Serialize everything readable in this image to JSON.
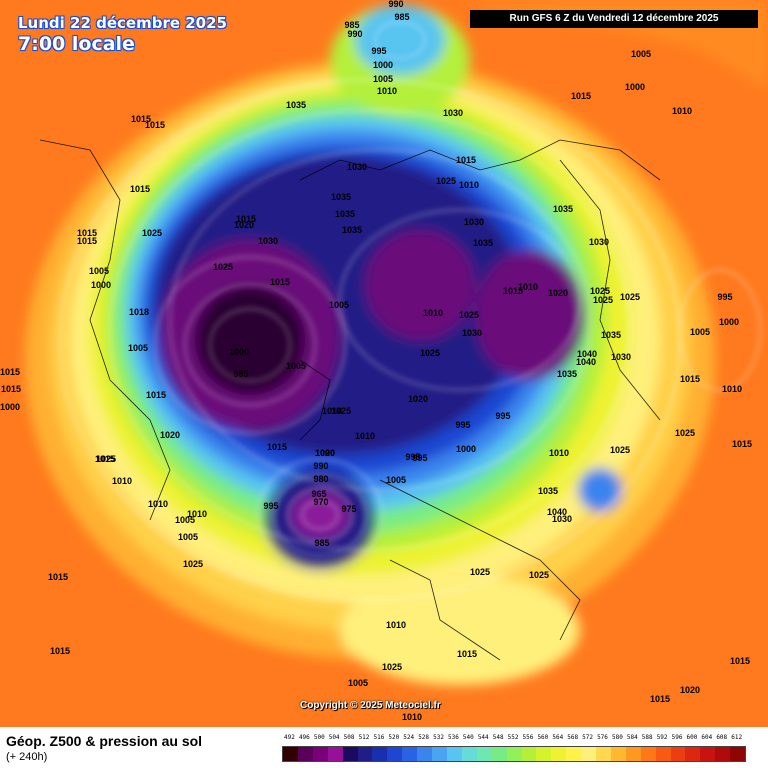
{
  "header": {
    "date": "Lundi 22 décembre 2025",
    "time": "7:00 locale",
    "run": "Run GFS 6 Z du Vendredi 12 décembre 2025"
  },
  "footer": {
    "product": "Géop. Z500 & pression au sol",
    "lead_time": "(+ 240h)",
    "copyright": "Copyright © 2025 Meteociel.fr"
  },
  "legend": {
    "labels": [
      "492",
      "496",
      "500",
      "504",
      "508",
      "512",
      "516",
      "520",
      "524",
      "528",
      "532",
      "536",
      "540",
      "544",
      "548",
      "552",
      "556",
      "560",
      "564",
      "568",
      "572",
      "576",
      "580",
      "584",
      "588",
      "592",
      "596",
      "600",
      "604",
      "608",
      "612"
    ],
    "colors": [
      "#330000",
      "#5a005a",
      "#7a007a",
      "#96109a",
      "#1a0a60",
      "#201e86",
      "#1a2fae",
      "#1e46d2",
      "#2a62e6",
      "#3a84ee",
      "#4aa4f2",
      "#58c4f0",
      "#66dcd8",
      "#6ee8b0",
      "#78ec84",
      "#92f05a",
      "#b4f03a",
      "#d6f22a",
      "#eef230",
      "#fff24a",
      "#fff07c",
      "#ffd850",
      "#ffb830",
      "#ff9820",
      "#ff7818",
      "#f85a14",
      "#ec3e12",
      "#dc2810",
      "#c81410",
      "#b00a0a",
      "#900404"
    ]
  },
  "pressure_labels": [
    {
      "text": "990"
    },
    {
      "text": "985"
    },
    {
      "text": "985"
    },
    {
      "text": "990"
    },
    {
      "text": "995"
    },
    {
      "text": "1000"
    },
    {
      "text": "1005"
    },
    {
      "text": "1010"
    },
    {
      "text": "1005"
    },
    {
      "text": "1000"
    },
    {
      "text": "1015"
    },
    {
      "text": "1010"
    },
    {
      "text": "1035"
    },
    {
      "text": "1030"
    },
    {
      "text": "1015"
    },
    {
      "text": "1015"
    },
    {
      "text": "1015"
    },
    {
      "text": "1015"
    },
    {
      "text": "1025"
    },
    {
      "text": "1030"
    },
    {
      "text": "1035"
    },
    {
      "text": "1035"
    },
    {
      "text": "1035"
    },
    {
      "text": "1030"
    },
    {
      "text": "1015"
    },
    {
      "text": "1020"
    },
    {
      "text": "1010"
    },
    {
      "text": "1030"
    },
    {
      "text": "1035"
    },
    {
      "text": "1035"
    },
    {
      "text": "1015"
    },
    {
      "text": "1025"
    },
    {
      "text": "1030"
    },
    {
      "text": "1015"
    },
    {
      "text": "1015"
    },
    {
      "text": "1005"
    },
    {
      "text": "1000"
    },
    {
      "text": "1025"
    },
    {
      "text": "1015"
    },
    {
      "text": "1010"
    },
    {
      "text": "1020"
    },
    {
      "text": "1025"
    },
    {
      "text": "995"
    },
    {
      "text": "1000"
    },
    {
      "text": "1018"
    },
    {
      "text": "1005"
    },
    {
      "text": "1005"
    },
    {
      "text": "1000"
    },
    {
      "text": "995"
    },
    {
      "text": "1005"
    },
    {
      "text": "1010"
    },
    {
      "text": "1025"
    },
    {
      "text": "1030"
    },
    {
      "text": "1025"
    },
    {
      "text": "1025"
    },
    {
      "text": "1035"
    },
    {
      "text": "1040"
    },
    {
      "text": "1040"
    },
    {
      "text": "1030"
    },
    {
      "text": "1005"
    },
    {
      "text": "1015"
    },
    {
      "text": "1010"
    },
    {
      "text": "1015"
    },
    {
      "text": "1000"
    },
    {
      "text": "1015"
    },
    {
      "text": "1020"
    },
    {
      "text": "1015"
    },
    {
      "text": "1025"
    },
    {
      "text": "1035"
    },
    {
      "text": "1020"
    },
    {
      "text": "1025"
    },
    {
      "text": "995"
    },
    {
      "text": "995"
    },
    {
      "text": "1010"
    },
    {
      "text": "1000"
    },
    {
      "text": "1010"
    },
    {
      "text": "1025"
    },
    {
      "text": "1015"
    },
    {
      "text": "1015"
    },
    {
      "text": "1020"
    },
    {
      "text": "1025"
    },
    {
      "text": "1010"
    },
    {
      "text": "1000"
    },
    {
      "text": "990"
    },
    {
      "text": "995"
    },
    {
      "text": "1005"
    },
    {
      "text": "995"
    },
    {
      "text": "980"
    },
    {
      "text": "975"
    },
    {
      "text": "970"
    },
    {
      "text": "965"
    },
    {
      "text": "985"
    },
    {
      "text": "1010"
    },
    {
      "text": "1005"
    },
    {
      "text": "1010"
    },
    {
      "text": "1035"
    },
    {
      "text": "1040"
    },
    {
      "text": "1030"
    },
    {
      "text": "1025"
    },
    {
      "text": "1025"
    },
    {
      "text": "1025"
    },
    {
      "text": "1015"
    },
    {
      "text": "1010"
    },
    {
      "text": "1015"
    },
    {
      "text": "1015"
    },
    {
      "text": "1010"
    },
    {
      "text": "1025"
    },
    {
      "text": "1025"
    },
    {
      "text": "1015"
    },
    {
      "text": "1020"
    },
    {
      "text": "1005"
    },
    {
      "text": "1010"
    },
    {
      "text": "1015"
    },
    {
      "text": "1015"
    },
    {
      "text": "1005"
    },
    {
      "text": "995"
    }
  ]
}
